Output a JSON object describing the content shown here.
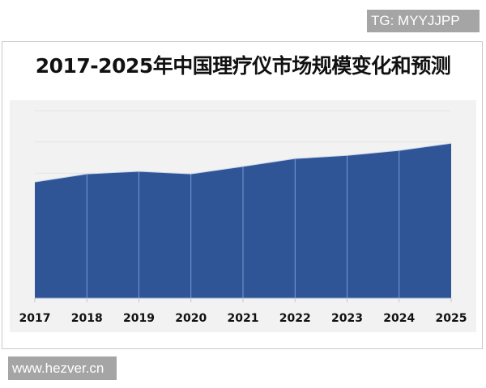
{
  "watermark_top": "TG: MYYJJPP",
  "watermark_bottom": "www.hezver.cn",
  "chart_data": {
    "type": "area",
    "title": "2017-2025年中国理疗仪市场规模变化和预测",
    "categories": [
      "2017",
      "2018",
      "2019",
      "2020",
      "2021",
      "2022",
      "2023",
      "2024",
      "2025"
    ],
    "series": [
      {
        "values": [
          3.72,
          3.98,
          4.06,
          3.98,
          4.22,
          4.47,
          4.57,
          4.73,
          4.96
        ]
      }
    ],
    "ylim": [
      0,
      6
    ],
    "y_tick_labels_shown": false,
    "grid": true,
    "colors": {
      "fill": "#2f5597",
      "divider": "#8faadc",
      "background": "#f2f2f2",
      "grid": "#e4e4e4"
    }
  }
}
